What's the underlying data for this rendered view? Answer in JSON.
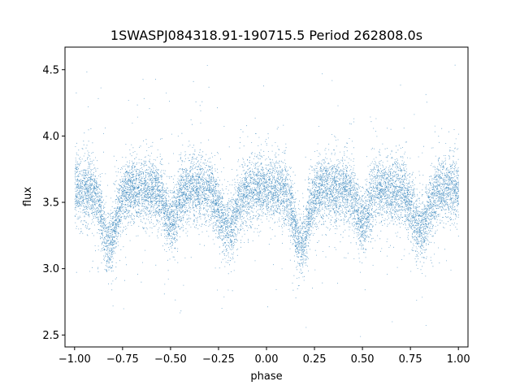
{
  "chart_data": {
    "type": "scatter",
    "title": "1SWASPJ084318.91-190715.5 Period 262808.0s",
    "xlabel": "phase",
    "ylabel": "flux",
    "xlim": [
      -1.05,
      1.05
    ],
    "ylim": [
      2.41,
      4.67
    ],
    "xticks": [
      -1.0,
      -0.75,
      -0.5,
      -0.25,
      0.0,
      0.25,
      0.5,
      0.75,
      1.0
    ],
    "xtick_labels": [
      "−1.00",
      "−0.75",
      "−0.50",
      "−0.25",
      "0.00",
      "0.25",
      "0.50",
      "0.75",
      "1.00"
    ],
    "yticks": [
      2.5,
      3.0,
      3.5,
      4.0,
      4.5
    ],
    "ytick_labels": [
      "2.5",
      "3.0",
      "3.5",
      "4.0",
      "4.5"
    ],
    "grid": false,
    "legend": "none",
    "marker_color": "#1f77b4",
    "x_range": [
      -1.0,
      1.0
    ],
    "baseline_flux": 3.6,
    "baseline_scatter": 0.12,
    "eclipses": [
      {
        "phase": -0.82,
        "depth": 0.42,
        "width": 0.035
      },
      {
        "phase": -0.5,
        "depth": 0.25,
        "width": 0.03
      },
      {
        "phase": -0.2,
        "depth": 0.3,
        "width": 0.04
      },
      {
        "phase": 0.18,
        "depth": 0.42,
        "width": 0.035
      },
      {
        "phase": 0.5,
        "depth": 0.25,
        "width": 0.03
      },
      {
        "phase": 0.8,
        "depth": 0.3,
        "width": 0.04
      }
    ],
    "point_count": 14000
  }
}
